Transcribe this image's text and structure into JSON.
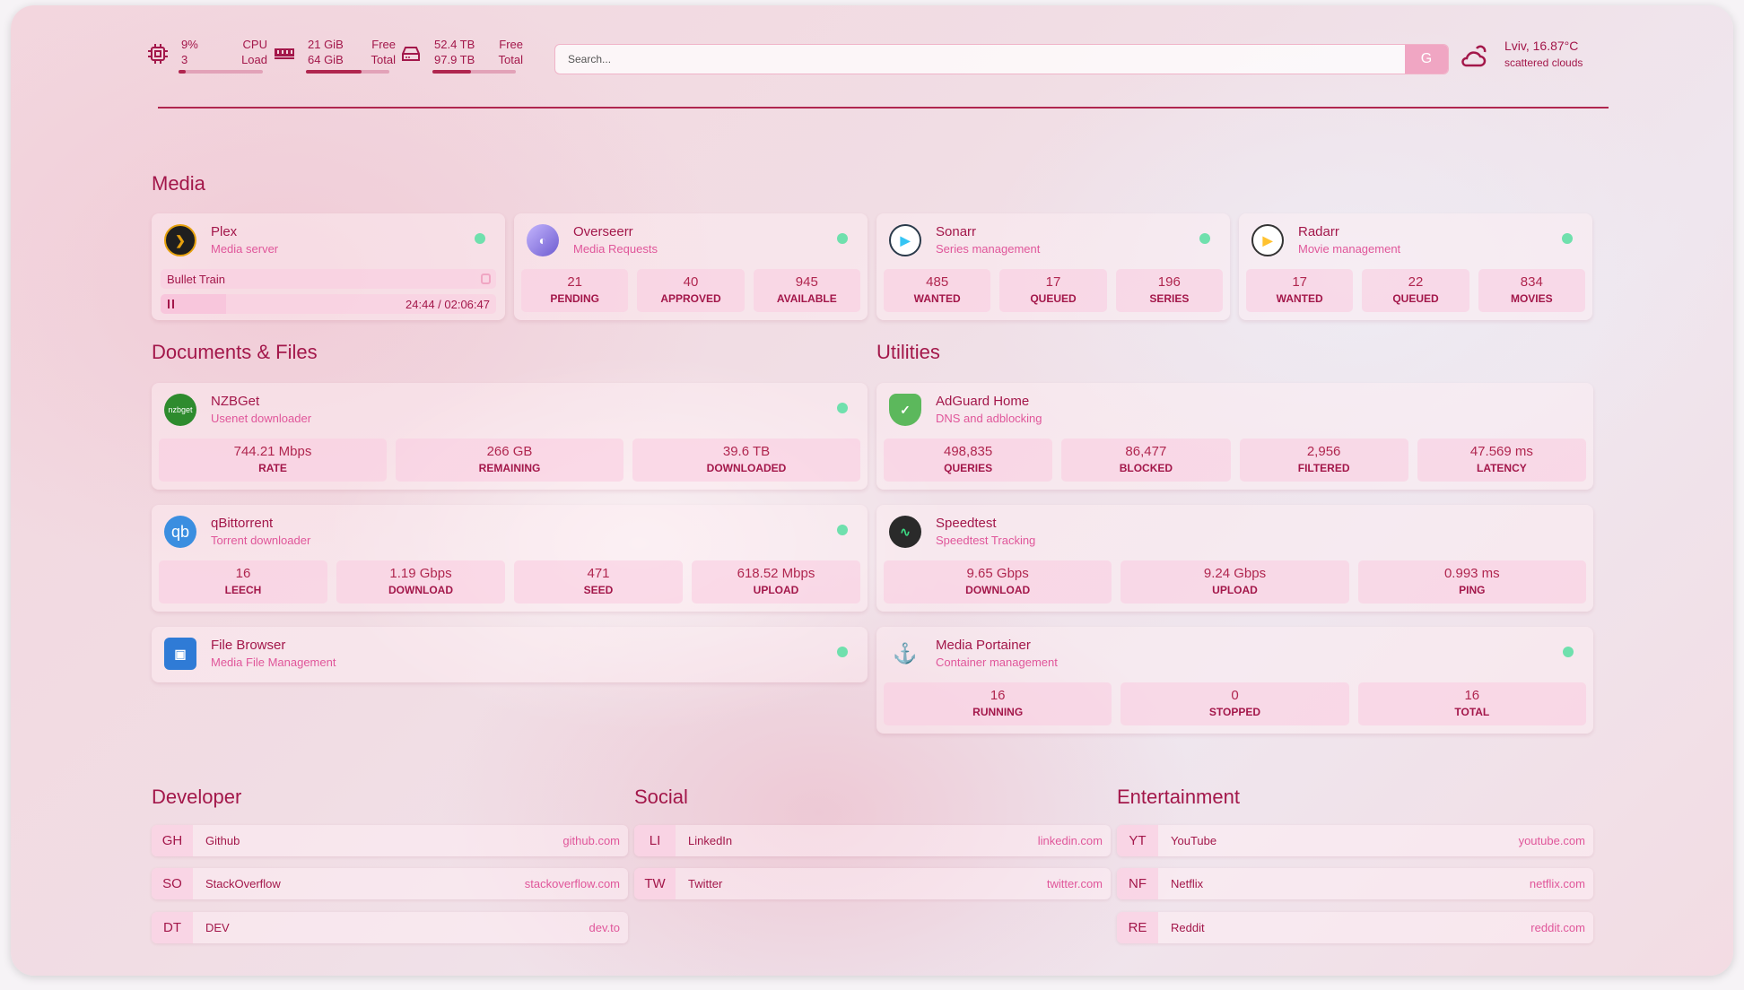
{
  "topbar": {
    "cpu": {
      "icon": "cpu-icon",
      "value": "9%",
      "sub": "3",
      "label1": "CPU",
      "label2": "Load",
      "usage": 0.09
    },
    "memory": {
      "icon": "memory-icon",
      "value": "21 GiB",
      "sub": "64 GiB",
      "label1": "Free",
      "label2": "Total",
      "usage": 0.67
    },
    "disk": {
      "icon": "disk-icon",
      "value": "52.4 TB",
      "sub": "97.9 TB",
      "label1": "Free",
      "label2": "Total",
      "usage": 0.46
    },
    "search": {
      "placeholder": "Search...",
      "button": "G"
    },
    "weather": {
      "icon": "cloud-sun-icon",
      "location": "Lviv, 16.87°C",
      "condition": "scattered clouds"
    }
  },
  "colors": {
    "accent": "#a3174a",
    "light": "#e0569a",
    "status_ok": "#6fe0ad"
  },
  "media": {
    "title": "Media",
    "cards": [
      {
        "name": "Plex",
        "sub": "Media server",
        "icon": "plex-icon",
        "now_playing": "Bullet Train",
        "time": "24:44 / 02:06:47",
        "progress": 0.195
      },
      {
        "name": "Overseerr",
        "sub": "Media Requests",
        "icon": "overseerr-icon",
        "stats": [
          {
            "v": "21",
            "l": "PENDING"
          },
          {
            "v": "40",
            "l": "APPROVED"
          },
          {
            "v": "945",
            "l": "AVAILABLE"
          }
        ]
      },
      {
        "name": "Sonarr",
        "sub": "Series management",
        "icon": "sonarr-icon",
        "stats": [
          {
            "v": "485",
            "l": "WANTED"
          },
          {
            "v": "17",
            "l": "QUEUED"
          },
          {
            "v": "196",
            "l": "SERIES"
          }
        ]
      },
      {
        "name": "Radarr",
        "sub": "Movie management",
        "icon": "radarr-icon",
        "stats": [
          {
            "v": "17",
            "l": "WANTED"
          },
          {
            "v": "22",
            "l": "QUEUED"
          },
          {
            "v": "834",
            "l": "MOVIES"
          }
        ]
      }
    ]
  },
  "docs": {
    "title": "Documents & Files",
    "cards": [
      {
        "name": "NZBGet",
        "sub": "Usenet downloader",
        "icon": "nzbget-icon",
        "icon_text": "nzbget",
        "dot": true,
        "stats": [
          {
            "v": "744.21 Mbps",
            "l": "RATE"
          },
          {
            "v": "266 GB",
            "l": "REMAINING"
          },
          {
            "v": "39.6 TB",
            "l": "DOWNLOADED"
          }
        ]
      },
      {
        "name": "qBittorrent",
        "sub": "Torrent downloader",
        "icon": "qbittorrent-icon",
        "icon_text": "qb",
        "dot": true,
        "stats": [
          {
            "v": "16",
            "l": "LEECH"
          },
          {
            "v": "1.19 Gbps",
            "l": "DOWNLOAD"
          },
          {
            "v": "471",
            "l": "SEED"
          },
          {
            "v": "618.52 Mbps",
            "l": "UPLOAD"
          }
        ]
      },
      {
        "name": "File Browser",
        "sub": "Media File Management",
        "icon": "filebrowser-icon",
        "dot": true
      }
    ]
  },
  "utilities": {
    "title": "Utilities",
    "cards": [
      {
        "name": "AdGuard Home",
        "sub": "DNS and adblocking",
        "icon": "adguard-icon",
        "stats": [
          {
            "v": "498,835",
            "l": "QUERIES"
          },
          {
            "v": "86,477",
            "l": "BLOCKED"
          },
          {
            "v": "2,956",
            "l": "FILTERED"
          },
          {
            "v": "47.569 ms",
            "l": "LATENCY"
          }
        ]
      },
      {
        "name": "Speedtest",
        "sub": "Speedtest Tracking",
        "icon": "speedtest-icon",
        "stats": [
          {
            "v": "9.65 Gbps",
            "l": "DOWNLOAD"
          },
          {
            "v": "9.24 Gbps",
            "l": "UPLOAD"
          },
          {
            "v": "0.993 ms",
            "l": "PING"
          }
        ]
      },
      {
        "name": "Media Portainer",
        "sub": "Container management",
        "icon": "portainer-icon",
        "dot": true,
        "stats": [
          {
            "v": "16",
            "l": "RUNNING"
          },
          {
            "v": "0",
            "l": "STOPPED"
          },
          {
            "v": "16",
            "l": "TOTAL"
          }
        ]
      }
    ]
  },
  "bookmarks": [
    {
      "title": "Developer",
      "links": [
        {
          "abbr": "GH",
          "name": "Github",
          "url": "github.com"
        },
        {
          "abbr": "SO",
          "name": "StackOverflow",
          "url": "stackoverflow.com"
        },
        {
          "abbr": "DT",
          "name": "DEV",
          "url": "dev.to"
        }
      ]
    },
    {
      "title": "Social",
      "links": [
        {
          "abbr": "LI",
          "name": "LinkedIn",
          "url": "linkedin.com"
        },
        {
          "abbr": "TW",
          "name": "Twitter",
          "url": "twitter.com"
        }
      ]
    },
    {
      "title": "Entertainment",
      "links": [
        {
          "abbr": "YT",
          "name": "YouTube",
          "url": "youtube.com"
        },
        {
          "abbr": "NF",
          "name": "Netflix",
          "url": "netflix.com"
        },
        {
          "abbr": "RE",
          "name": "Reddit",
          "url": "reddit.com"
        }
      ]
    }
  ]
}
